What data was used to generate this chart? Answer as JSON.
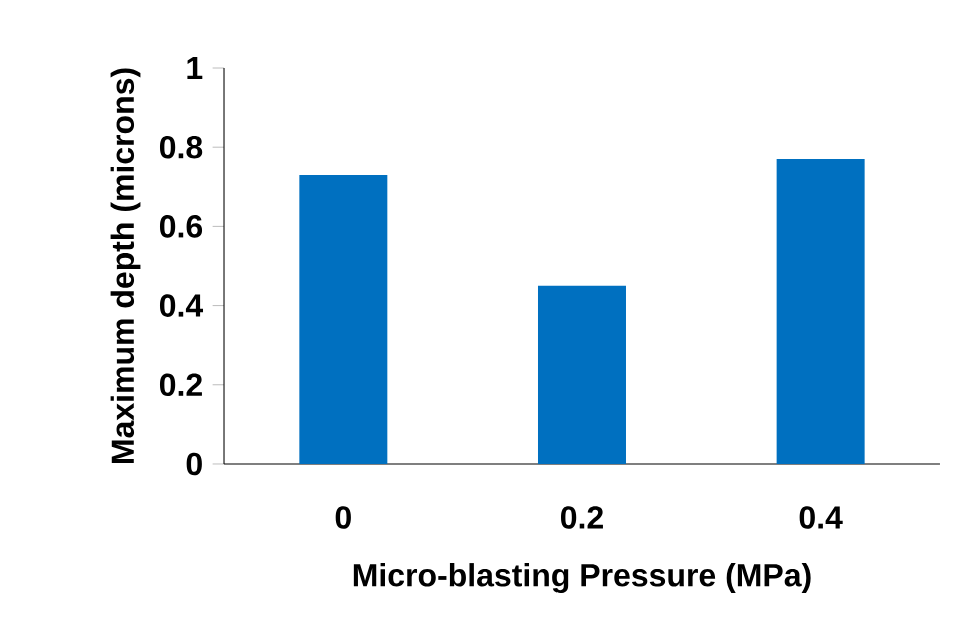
{
  "chart_data": {
    "type": "bar",
    "xlabel": "Micro-blasting Pressure (MPa)",
    "ylabel": "Maximum depth (microns)",
    "categories": [
      "0",
      "0.2",
      "0.4"
    ],
    "values": [
      0.73,
      0.45,
      0.77
    ],
    "color": "#0070c0",
    "ylim": [
      0,
      1
    ],
    "yticks": [
      0,
      0.2,
      0.4,
      0.6,
      0.8,
      1
    ]
  }
}
